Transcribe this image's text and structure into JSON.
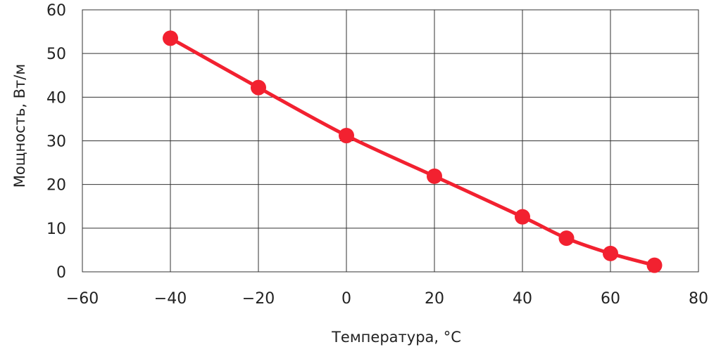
{
  "chart_data": {
    "type": "line",
    "xlabel": "Температура, °C",
    "ylabel": "Мощность, Вт/м",
    "xlim": [
      -60,
      80
    ],
    "ylim": [
      0,
      60
    ],
    "xticks": [
      -60,
      -40,
      -20,
      0,
      20,
      40,
      60,
      80
    ],
    "yticks": [
      0,
      10,
      20,
      30,
      40,
      50,
      60
    ],
    "xtick_labels": [
      "−60",
      "−40",
      "−20",
      "0",
      "20",
      "40",
      "60",
      "80"
    ],
    "ytick_labels": [
      "0",
      "10",
      "20",
      "30",
      "40",
      "50",
      "60"
    ],
    "grid": true,
    "series": [
      {
        "x": [
          -40,
          -20,
          0,
          20,
          40,
          50,
          60,
          70
        ],
        "y": [
          53.5,
          42.2,
          31.2,
          21.9,
          12.6,
          7.7,
          4.2,
          1.5
        ],
        "color": "#f22130"
      }
    ]
  }
}
